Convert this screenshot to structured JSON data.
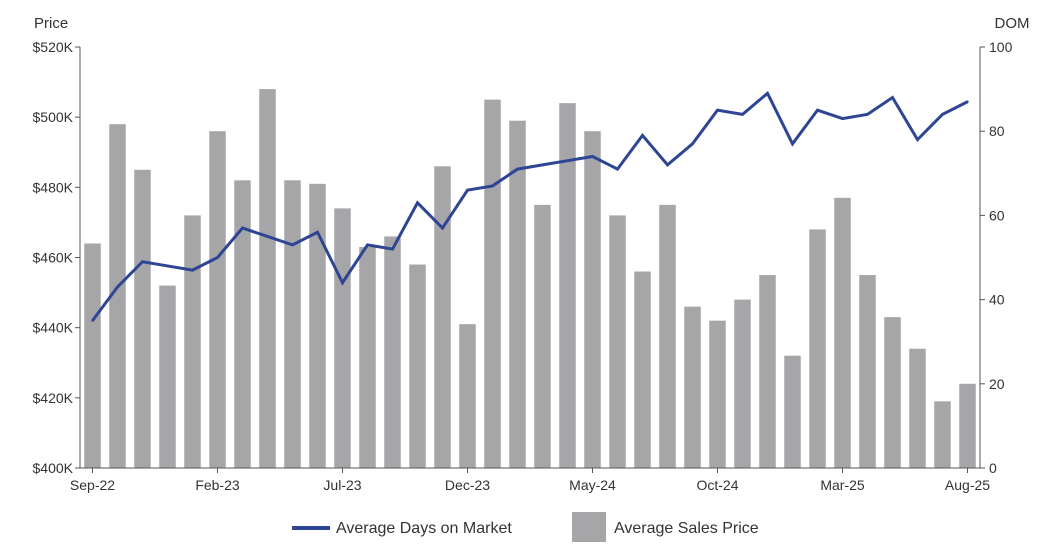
{
  "chart_data": {
    "type": "bar",
    "categories": [
      "Sep-22",
      "Oct-22",
      "Nov-22",
      "Dec-22",
      "Jan-23",
      "Feb-23",
      "Mar-23",
      "Apr-23",
      "May-23",
      "Jun-23",
      "Jul-23",
      "Aug-23",
      "Sep-23",
      "Oct-23",
      "Nov-23",
      "Dec-23",
      "Jan-24",
      "Feb-24",
      "Mar-24",
      "Apr-24",
      "May-24",
      "Jun-24",
      "Jul-24",
      "Aug-24",
      "Sep-24",
      "Oct-24",
      "Nov-24",
      "Dec-24",
      "Jan-25",
      "Feb-25",
      "Mar-25",
      "Apr-25",
      "May-25",
      "Jun-25",
      "Jul-25",
      "Aug-25"
    ],
    "x_tick_labels": [
      "Sep-22",
      "Feb-23",
      "Jul-23",
      "Dec-23",
      "May-24",
      "Oct-24",
      "Mar-25",
      "Aug-25"
    ],
    "x_tick_indices": [
      0,
      5,
      10,
      15,
      20,
      25,
      30,
      35
    ],
    "series": [
      {
        "name": "Average Sales Price",
        "type": "bar",
        "axis": "left",
        "color": "#a6a6a9",
        "values": [
          464000,
          498000,
          485000,
          452000,
          472000,
          496000,
          482000,
          508000,
          482000,
          481000,
          474000,
          463000,
          466000,
          458000,
          486000,
          441000,
          505000,
          499000,
          475000,
          504000,
          496000,
          472000,
          456000,
          475000,
          446000,
          442000,
          448000,
          455000,
          432000,
          468000,
          477000,
          455000,
          443000,
          434000,
          419000,
          424000
        ]
      },
      {
        "name": "Average Days on Market",
        "type": "line",
        "axis": "right",
        "color": "#2e4593",
        "values": [
          35,
          43,
          49,
          48,
          47,
          50,
          57,
          55,
          53,
          56,
          44,
          53,
          52,
          63,
          57,
          66,
          67,
          71,
          72,
          73,
          74,
          71,
          79,
          72,
          77,
          85,
          84,
          89,
          77,
          85,
          83,
          84,
          88,
          78,
          84,
          87
        ]
      }
    ],
    "left_axis": {
      "title": "Price",
      "min": 400000,
      "max": 520000,
      "ticks": [
        400000,
        420000,
        440000,
        460000,
        480000,
        500000,
        520000
      ],
      "tick_labels": [
        "$400K",
        "$420K",
        "$440K",
        "$460K",
        "$480K",
        "$500K",
        "$520K"
      ]
    },
    "right_axis": {
      "title": "DOM",
      "min": 0,
      "max": 100,
      "ticks": [
        0,
        20,
        40,
        60,
        80,
        100
      ],
      "tick_labels": [
        "0",
        "20",
        "40",
        "60",
        "80",
        "100"
      ]
    },
    "legend": {
      "position": "bottom",
      "items": [
        {
          "label": "Average Days on Market",
          "kind": "line",
          "color": "#2e4593"
        },
        {
          "label": "Average Sales Price",
          "kind": "box",
          "color": "#a6a6a9"
        }
      ]
    },
    "grid": false
  }
}
